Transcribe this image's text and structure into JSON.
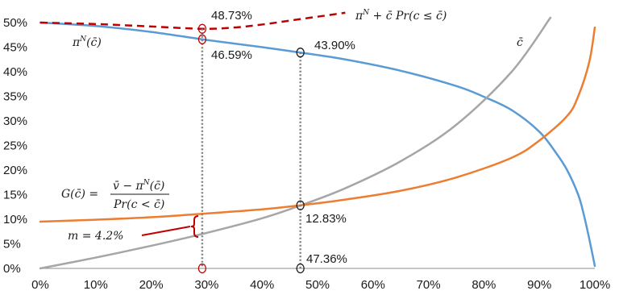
{
  "chart_data": {
    "type": "line",
    "x_ticks": [
      "0%",
      "10%",
      "20%",
      "30%",
      "40%",
      "50%",
      "60%",
      "70%",
      "80%",
      "90%",
      "100%"
    ],
    "y_ticks": [
      "0%",
      "5%",
      "10%",
      "15%",
      "20%",
      "25%",
      "30%",
      "35%",
      "40%",
      "45%",
      "50%"
    ],
    "xlim": [
      0,
      1
    ],
    "ylim": [
      0,
      0.5
    ],
    "grid": false,
    "series": [
      {
        "name": "πᴺ(c̄)",
        "color": "#5b9bd5",
        "style": "solid",
        "x": [
          0,
          0.1,
          0.2,
          0.292,
          0.4,
          0.469,
          0.55,
          0.65,
          0.75,
          0.8,
          0.85,
          0.9,
          0.93,
          0.95,
          0.97,
          0.98,
          0.99,
          1.0
        ],
        "y": [
          0.5,
          0.493,
          0.481,
          0.4659,
          0.45,
          0.439,
          0.425,
          0.402,
          0.371,
          0.349,
          0.322,
          0.278,
          0.235,
          0.2,
          0.15,
          0.11,
          0.06,
          0.005
        ]
      },
      {
        "name": "πᴺ + c̄ Pr(c ≤ c̄)",
        "color": "#c00000",
        "style": "dashed",
        "x": [
          0,
          0.1,
          0.2,
          0.292,
          0.35,
          0.4,
          0.45,
          0.5,
          0.55
        ],
        "y": [
          0.5,
          0.497,
          0.492,
          0.4873,
          0.49,
          0.496,
          0.504,
          0.512,
          0.52
        ]
      },
      {
        "name": "c̄",
        "color": "#a6a6a6",
        "style": "solid",
        "x": [
          0,
          0.1,
          0.2,
          0.292,
          0.4,
          0.469,
          0.55,
          0.65,
          0.75,
          0.85,
          0.92
        ],
        "y": [
          0,
          0.022,
          0.046,
          0.07,
          0.102,
          0.128,
          0.163,
          0.218,
          0.292,
          0.4,
          0.51
        ]
      },
      {
        "name": "G(c̄)",
        "color": "#ed7d31",
        "style": "solid",
        "x": [
          0,
          0.1,
          0.2,
          0.292,
          0.4,
          0.469,
          0.55,
          0.65,
          0.75,
          0.85,
          0.9,
          0.95,
          0.97,
          0.99,
          1.0
        ],
        "y": [
          0.095,
          0.099,
          0.104,
          0.111,
          0.12,
          0.1283,
          0.14,
          0.158,
          0.185,
          0.225,
          0.26,
          0.31,
          0.35,
          0.42,
          0.49
        ]
      }
    ],
    "vertical_markers": [
      {
        "x": 0.292,
        "color": "#c00000",
        "points": [
          0.4873,
          0.4659,
          0
        ]
      },
      {
        "x": 0.469,
        "color": "#1a1a1a",
        "points": [
          0.439,
          0.1283,
          0
        ]
      }
    ],
    "annotations": {
      "val_4873": "48.73%",
      "val_4659": "46.59%",
      "val_4390": "43.90%",
      "val_1283": "12.83%",
      "val_4736": "47.36%",
      "m_label": "m = 4.2%"
    },
    "labels": {
      "pi_n_pre": "π",
      "pi_n_sup": "N",
      "pi_n_post": "(c̄)",
      "dashed_pre": "π",
      "dashed_sup": "N",
      "dashed_post": " + c̄ Pr(c ≤ c̄)",
      "cbar": "c̄",
      "g_lhs": "G(c̄) =",
      "g_num_pre": "v̄ − π",
      "g_num_sup": "N",
      "g_num_post": "(c̄)",
      "g_den": "Pr(c < c̄)"
    }
  }
}
